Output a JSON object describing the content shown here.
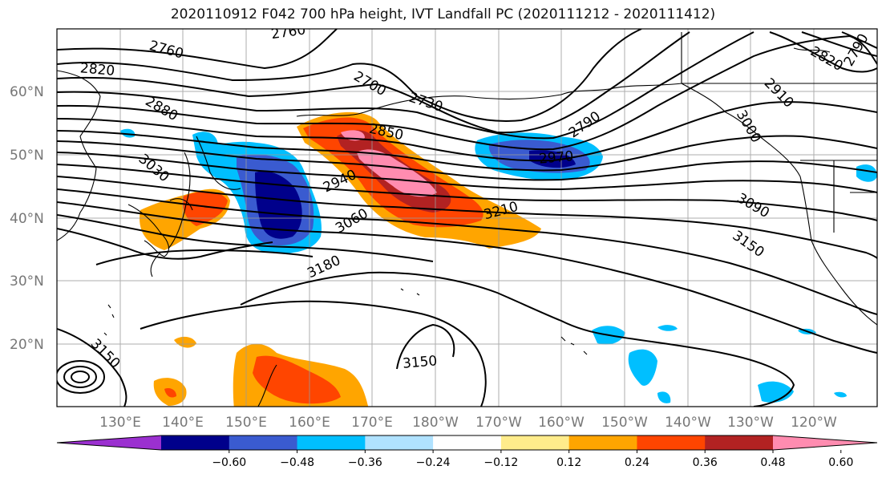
{
  "title": "2020110912 F042 700 hPa height, IVT Landfall PC (2020111212 - 2020111412)",
  "lat_labels": [
    "60°N",
    "50°N",
    "40°N",
    "30°N",
    "20°N"
  ],
  "lon_labels": [
    "130°E",
    "140°E",
    "150°E",
    "160°E",
    "170°E",
    "180°W",
    "170°W",
    "160°W",
    "150°W",
    "140°W",
    "130°W",
    "120°W"
  ],
  "contour_labels": [
    "2760",
    "2760",
    "2820",
    "2880",
    "2700",
    "2730",
    "2790",
    "2820",
    "2790",
    "2910",
    "3000",
    "3030",
    "2850",
    "2940",
    "2970",
    "3060",
    "3210",
    "3090",
    "3150",
    "3180",
    "3150",
    "3150"
  ],
  "colorbar": {
    "ticks": [
      "−0.60",
      "−0.48",
      "−0.36",
      "−0.24",
      "−0.12",
      "0.12",
      "0.24",
      "0.36",
      "0.48",
      "0.60"
    ],
    "colors": [
      "#9b30d0",
      "#00008b",
      "#3a5bd0",
      "#00bfff",
      "#b0e2ff",
      "#ffffff",
      "#ffec8b",
      "#ffa500",
      "#ff4500",
      "#b22222",
      "#ff8cb0"
    ]
  },
  "colors": {
    "neg_strong": "#00008b",
    "neg_mid": "#3a5bd0",
    "neg_light": "#00bfff",
    "neg_pale": "#b0e2ff",
    "pos_pale": "#ffec8b",
    "pos_light": "#ffa500",
    "pos_mid": "#ff4500",
    "pos_strong": "#b22222",
    "pos_max": "#ff8cb0"
  }
}
